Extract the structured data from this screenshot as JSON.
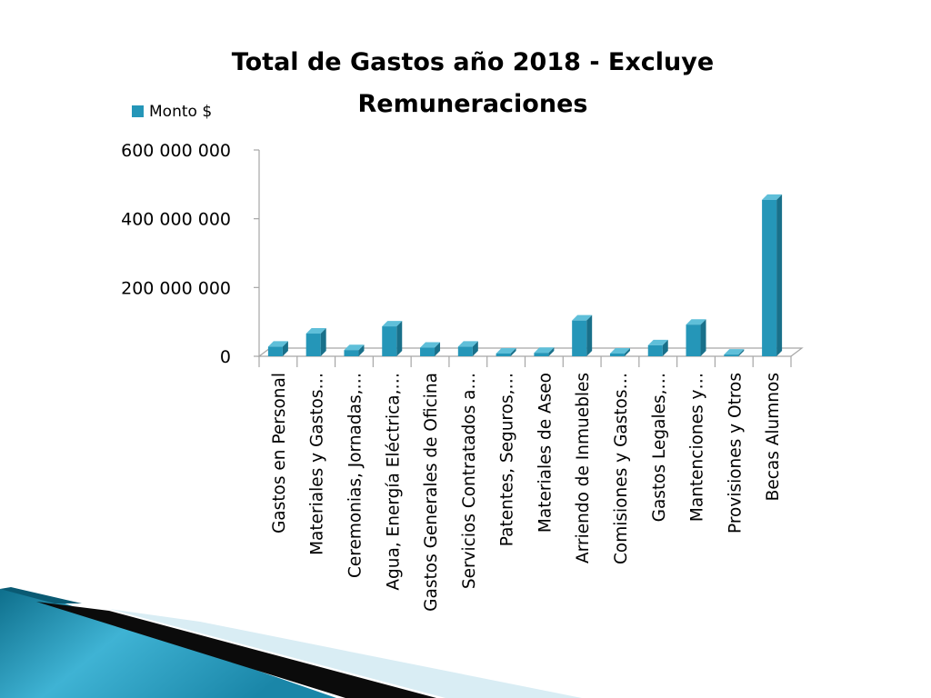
{
  "chart_data": {
    "type": "bar",
    "title_lines": [
      "Total de Gastos año 2018 - Excluye",
      "Remuneraciones"
    ],
    "legend": {
      "label": "Monto $",
      "position": "top-left"
    },
    "colors": {
      "front": "#2596b8",
      "side": "#19708a",
      "top": "#5fbfd9",
      "axis": "#a6a6a6"
    },
    "ylim": [
      0,
      600000000
    ],
    "yticks": [
      {
        "value": 0,
        "label": "0"
      },
      {
        "value": 200000000,
        "label": "200 000 000"
      },
      {
        "value": 400000000,
        "label": "400 000 000"
      },
      {
        "value": 600000000,
        "label": "600 000 000"
      }
    ],
    "grid": false,
    "categories": [
      "Gastos en Personal",
      "Materiales y Gastos…",
      "Ceremonias, Jornadas,…",
      "Agua, Energía Eléctrica,…",
      "Gastos Generales de Oficina",
      "Servicios Contratados a…",
      "Patentes, Seguros,…",
      "Materiales de Aseo",
      "Arriendo de Inmuebles",
      "Comisiones y Gastos…",
      "Gastos Legales,…",
      "Mantenciones y…",
      "Provisiones y Otros",
      "Becas Alumnos"
    ],
    "series": [
      {
        "name": "Monto $",
        "values": [
          28000000,
          66000000,
          18000000,
          87000000,
          25000000,
          28000000,
          8000000,
          10000000,
          104000000,
          8000000,
          32000000,
          92000000,
          5000000,
          455000000
        ]
      }
    ]
  }
}
